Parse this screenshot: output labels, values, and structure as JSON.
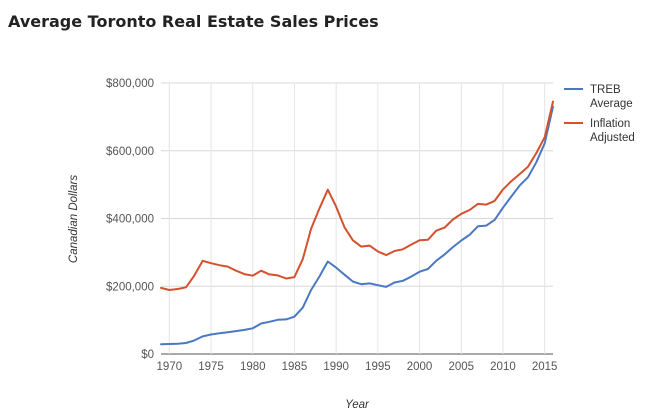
{
  "chart_data": {
    "type": "line",
    "title": "Average Toronto Real Estate Sales Prices",
    "xlabel": "Year",
    "ylabel": "Canadian Dollars",
    "xlim": [
      1969,
      2016
    ],
    "ylim": [
      0,
      800000
    ],
    "xticks": [
      1970,
      1975,
      1980,
      1985,
      1990,
      1995,
      2000,
      2005,
      2010,
      2015
    ],
    "yticks": [
      {
        "value": 0,
        "label": "$0"
      },
      {
        "value": 200000,
        "label": "$200,000"
      },
      {
        "value": 400000,
        "label": "$400,000"
      },
      {
        "value": 600000,
        "label": "$600,000"
      },
      {
        "value": 800000,
        "label": "$800,000"
      }
    ],
    "grid": true,
    "legend": "right",
    "x": [
      1969,
      1970,
      1971,
      1972,
      1973,
      1974,
      1975,
      1976,
      1977,
      1978,
      1979,
      1980,
      1981,
      1982,
      1983,
      1984,
      1985,
      1986,
      1987,
      1988,
      1989,
      1990,
      1991,
      1992,
      1993,
      1994,
      1995,
      1996,
      1997,
      1998,
      1999,
      2000,
      2001,
      2002,
      2003,
      2004,
      2005,
      2006,
      2007,
      2008,
      2009,
      2010,
      2011,
      2012,
      2013,
      2014,
      2015,
      2016
    ],
    "series": [
      {
        "name": [
          "TREB",
          "Average"
        ],
        "color": "#4a78c2",
        "values": [
          29000,
          29500,
          30500,
          32500,
          40000,
          52000,
          57500,
          61500,
          64500,
          67500,
          71000,
          76000,
          90000,
          95000,
          101000,
          102000,
          110000,
          137000,
          189000,
          229000,
          273000,
          255000,
          234000,
          214000,
          206000,
          208500,
          203000,
          198000,
          211000,
          216000,
          228500,
          243000,
          251000,
          275000,
          294000,
          315500,
          335000,
          352000,
          377000,
          379000,
          396000,
          432000,
          465000,
          497000,
          522000,
          566000,
          622000,
          730000
        ]
      },
      {
        "name": [
          "Inflation",
          "Adjusted"
        ],
        "color": "#d4512e",
        "values": [
          195000,
          189000,
          192000,
          197000,
          232000,
          275000,
          268000,
          262000,
          258000,
          246000,
          236000,
          231000,
          246000,
          235000,
          232000,
          223000,
          227000,
          280000,
          370000,
          430000,
          485000,
          435000,
          374000,
          336000,
          317000,
          320000,
          303000,
          292000,
          304000,
          309000,
          323000,
          336000,
          337000,
          364000,
          373000,
          397000,
          414000,
          425000,
          443000,
          441000,
          452000,
          486000,
          510000,
          531000,
          553000,
          593000,
          640000,
          745000
        ]
      }
    ]
  }
}
